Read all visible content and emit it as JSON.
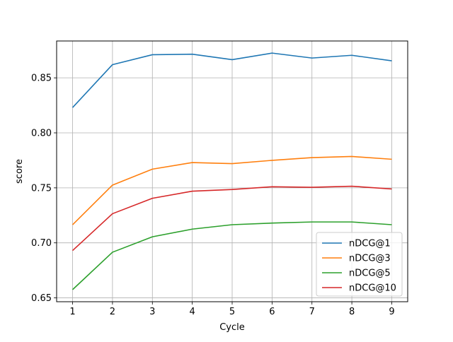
{
  "chart_data": {
    "type": "line",
    "title": "",
    "xlabel": "Cycle",
    "ylabel": "score",
    "x": [
      1,
      2,
      3,
      4,
      5,
      6,
      7,
      8,
      9
    ],
    "xticks": [
      "1",
      "2",
      "3",
      "4",
      "5",
      "6",
      "7",
      "8",
      "9"
    ],
    "xlim": [
      0.6,
      9.4
    ],
    "ylim": [
      0.6465,
      0.8835
    ],
    "yticks": [
      "0.65",
      "0.70",
      "0.75",
      "0.80",
      "0.85"
    ],
    "grid": true,
    "legend_position": "lower-right",
    "series": [
      {
        "name": "nDCG@1",
        "color": "#1f77b4",
        "values": [
          0.823,
          0.862,
          0.871,
          0.8715,
          0.8665,
          0.8725,
          0.868,
          0.8705,
          0.8655
        ]
      },
      {
        "name": "nDCG@3",
        "color": "#ff7f0e",
        "values": [
          0.7165,
          0.7525,
          0.767,
          0.773,
          0.772,
          0.775,
          0.7775,
          0.7785,
          0.776
        ]
      },
      {
        "name": "nDCG@5",
        "color": "#2ca02c",
        "values": [
          0.6575,
          0.6915,
          0.7055,
          0.7125,
          0.7165,
          0.718,
          0.719,
          0.719,
          0.7165
        ]
      },
      {
        "name": "nDCG@10",
        "color": "#d62728",
        "values": [
          0.693,
          0.7265,
          0.7405,
          0.747,
          0.7485,
          0.751,
          0.7505,
          0.7515,
          0.749
        ]
      }
    ]
  }
}
